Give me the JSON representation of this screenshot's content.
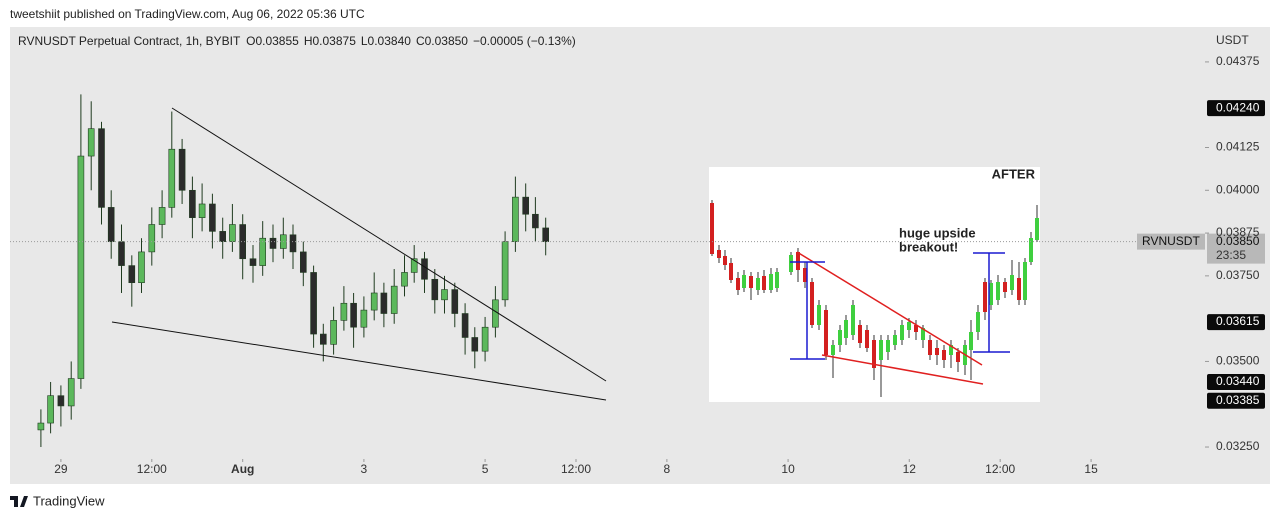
{
  "published": "tweetshiit published on TradingView.com, Aug 06, 2022 05:36 UTC",
  "footer": "TradingView",
  "chart_data": {
    "type": "candlestick",
    "title": "RVNUSDT Perpetual Contract, 1h, BYBIT",
    "ohlc_labels": [
      "O0.03855",
      "H0.03875",
      "L0.03840",
      "C0.03850",
      "−0.00005 (−0.13%)"
    ],
    "y_unit": "USDT",
    "up_color": "#5cb85c",
    "down_color": "#2b2b2b",
    "wick_color": "#1f3b1f",
    "x": [
      -0.33,
      -0.17,
      0,
      0.17,
      0.33,
      0.5,
      0.67,
      0.83,
      1,
      1.17,
      1.33,
      1.5,
      1.67,
      1.83,
      2,
      2.17,
      2.33,
      2.5,
      2.67,
      2.83,
      3,
      3.17,
      3.33,
      3.5,
      3.67,
      3.83,
      4,
      4.17,
      4.33,
      4.5,
      4.67,
      4.83,
      5,
      5.17,
      5.33,
      5.5,
      5.67,
      5.83,
      6,
      6.17,
      6.33,
      6.5,
      6.67,
      6.83,
      7,
      7.17,
      7.33,
      7.5,
      7.67,
      7.83,
      8
    ],
    "open": [
      0.033,
      0.0332,
      0.034,
      0.0337,
      0.0345,
      0.041,
      0.0418,
      0.0395,
      0.0385,
      0.0378,
      0.0373,
      0.0382,
      0.039,
      0.0395,
      0.0412,
      0.04,
      0.0392,
      0.0396,
      0.0388,
      0.0385,
      0.039,
      0.038,
      0.0378,
      0.0386,
      0.0383,
      0.0387,
      0.0382,
      0.0376,
      0.0358,
      0.0355,
      0.0362,
      0.0367,
      0.036,
      0.0365,
      0.037,
      0.0364,
      0.0372,
      0.0376,
      0.038,
      0.0374,
      0.0368,
      0.0371,
      0.0364,
      0.0357,
      0.0353,
      0.036,
      0.0368,
      0.0385,
      0.0398,
      0.0393,
      0.0389
    ],
    "high": [
      0.0336,
      0.0344,
      0.0343,
      0.035,
      0.0428,
      0.0426,
      0.042,
      0.04,
      0.039,
      0.0381,
      0.0386,
      0.0395,
      0.04,
      0.0423,
      0.0415,
      0.0404,
      0.0402,
      0.0399,
      0.0392,
      0.0396,
      0.0393,
      0.0384,
      0.0391,
      0.039,
      0.0392,
      0.039,
      0.0385,
      0.0378,
      0.0361,
      0.0366,
      0.0372,
      0.037,
      0.0369,
      0.0376,
      0.0373,
      0.0377,
      0.0381,
      0.0384,
      0.0382,
      0.0377,
      0.0375,
      0.0373,
      0.0367,
      0.036,
      0.0363,
      0.0372,
      0.0388,
      0.0404,
      0.0402,
      0.0398,
      0.0392
    ],
    "low": [
      0.0325,
      0.0329,
      0.0331,
      0.0333,
      0.0342,
      0.04,
      0.039,
      0.038,
      0.037,
      0.0366,
      0.037,
      0.0378,
      0.0386,
      0.0392,
      0.0396,
      0.0386,
      0.0388,
      0.0383,
      0.038,
      0.0382,
      0.0374,
      0.0373,
      0.0375,
      0.0379,
      0.038,
      0.0377,
      0.0372,
      0.0354,
      0.035,
      0.0352,
      0.0359,
      0.0354,
      0.0357,
      0.0362,
      0.036,
      0.0361,
      0.0369,
      0.0373,
      0.037,
      0.0364,
      0.0364,
      0.036,
      0.0352,
      0.0348,
      0.035,
      0.0357,
      0.0366,
      0.0382,
      0.0388,
      0.0385,
      0.0381
    ],
    "close": [
      0.0332,
      0.034,
      0.0337,
      0.0345,
      0.041,
      0.0418,
      0.0395,
      0.0385,
      0.0378,
      0.0373,
      0.0382,
      0.039,
      0.0395,
      0.0412,
      0.04,
      0.0392,
      0.0396,
      0.0388,
      0.0385,
      0.039,
      0.038,
      0.0378,
      0.0386,
      0.0383,
      0.0387,
      0.0382,
      0.0376,
      0.0358,
      0.0355,
      0.0362,
      0.0367,
      0.036,
      0.0365,
      0.037,
      0.0364,
      0.0372,
      0.0376,
      0.038,
      0.0374,
      0.0368,
      0.0371,
      0.0364,
      0.0357,
      0.0353,
      0.036,
      0.0368,
      0.0385,
      0.0398,
      0.0393,
      0.0389,
      0.0385
    ],
    "xlim": [
      -0.84,
      18.88
    ],
    "xticks": [
      {
        "value": 0,
        "label": "29"
      },
      {
        "value": 1.5,
        "label": "12:00"
      },
      {
        "value": 3,
        "label": "Aug"
      },
      {
        "value": 5,
        "label": "3"
      },
      {
        "value": 7,
        "label": "5"
      },
      {
        "value": 8.5,
        "label": "12:00"
      },
      {
        "value": 10,
        "label": "8"
      },
      {
        "value": 12,
        "label": "10"
      },
      {
        "value": 14,
        "label": "12"
      },
      {
        "value": 15.5,
        "label": "12:00"
      },
      {
        "value": 17,
        "label": "15"
      }
    ],
    "ylim": [
      0.03215,
      0.04477
    ],
    "yticks": [
      {
        "value": 0.04375,
        "label": "0.04375"
      },
      {
        "value": 0.04125,
        "label": "0.04125"
      },
      {
        "value": 0.04,
        "label": "0.04000"
      },
      {
        "value": 0.03875,
        "label": "0.03875"
      },
      {
        "value": 0.0375,
        "label": "0.03750"
      },
      {
        "value": 0.035,
        "label": "0.03500"
      },
      {
        "value": 0.0325,
        "label": "0.03250"
      }
    ],
    "price_labels": [
      {
        "value": 0.0424,
        "label": "0.04240"
      },
      {
        "value": 0.03615,
        "label": "0.03615"
      },
      {
        "value": 0.0344,
        "label": "0.03440"
      },
      {
        "value": 0.03385,
        "label": "0.03385"
      }
    ],
    "last_price": {
      "value": 0.0385,
      "label": "0.03850",
      "symbol": "RVNUSDT",
      "countdown": "23:35"
    },
    "inset": {
      "label": "AFTER",
      "annotation": [
        "huge upside",
        "breakout!"
      ]
    }
  }
}
